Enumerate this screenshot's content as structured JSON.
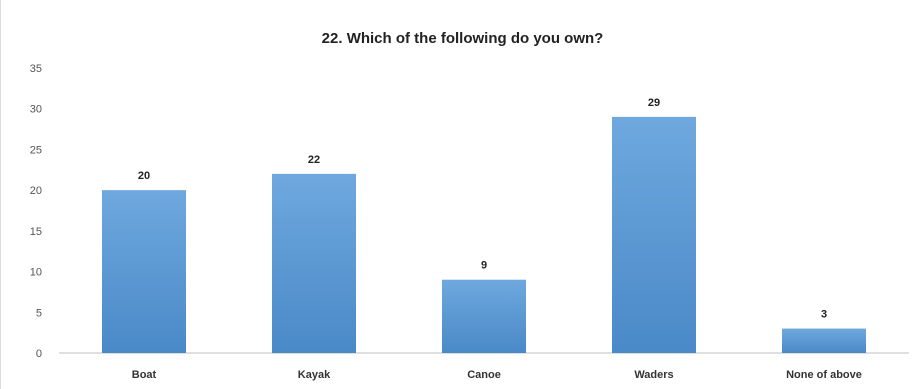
{
  "chart_data": {
    "type": "bar",
    "title": "22. Which of the following do you own?",
    "categories": [
      "Boat",
      "Kayak",
      "Canoe",
      "Waders",
      "None of above"
    ],
    "values": [
      20,
      22,
      9,
      29,
      3
    ],
    "data_labels": [
      "20",
      "22",
      "9",
      "29",
      "3"
    ],
    "yticks": [
      "0",
      "5",
      "10",
      "15",
      "20",
      "25",
      "30",
      "35"
    ],
    "ylim": [
      0,
      35
    ],
    "grid": false,
    "legend": "none",
    "bar_color": "#5b9bd5",
    "bar_color_top": "#6ea8de",
    "bar_color_bottom": "#4a89c8"
  }
}
